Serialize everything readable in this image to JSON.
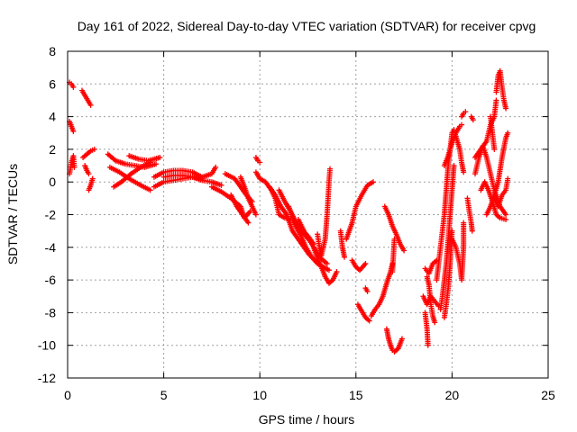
{
  "chart_data": {
    "type": "scatter",
    "title": "Day 161 of 2022, Sidereal Day-to-day VTEC variation (SDTVAR) for receiver cpvg",
    "xlabel": "GPS time / hours",
    "ylabel": "SDTVAR / TECUs",
    "xlim": [
      0,
      25
    ],
    "ylim": [
      -12,
      8
    ],
    "xticks": [
      "0",
      "5",
      "10",
      "15",
      "20",
      "25"
    ],
    "yticks": [
      "8",
      "6",
      "4",
      "2",
      "0",
      "-2",
      "-4",
      "-6",
      "-8",
      "-10",
      "-12"
    ],
    "grid": true,
    "marker": "+",
    "color": "#ff0000",
    "segments": [
      [
        [
          0.1,
          6.1
        ],
        [
          0.2,
          6.0
        ],
        [
          0.3,
          5.8
        ]
      ],
      [
        [
          0.1,
          3.7
        ],
        [
          0.2,
          3.4
        ],
        [
          0.3,
          3.1
        ]
      ],
      [
        [
          0.1,
          0.5
        ],
        [
          0.2,
          1.2
        ],
        [
          0.3,
          1.6
        ],
        [
          0.35,
          0.9
        ]
      ],
      [
        [
          0.75,
          5.6
        ],
        [
          0.9,
          5.3
        ],
        [
          1.05,
          5.0
        ],
        [
          1.2,
          4.7
        ]
      ],
      [
        [
          0.8,
          1.5
        ],
        [
          1.0,
          1.7
        ],
        [
          1.2,
          1.9
        ],
        [
          1.4,
          2.0
        ]
      ],
      [
        [
          0.9,
          1.0
        ],
        [
          1.0,
          0.7
        ],
        [
          1.1,
          0.5
        ]
      ],
      [
        [
          1.1,
          -0.5
        ],
        [
          1.2,
          -0.2
        ],
        [
          1.3,
          0.2
        ]
      ],
      [
        [
          2.1,
          1.7
        ],
        [
          2.5,
          1.3
        ],
        [
          3.0,
          1.1
        ],
        [
          3.5,
          1.0
        ],
        [
          4.0,
          0.9
        ],
        [
          4.6,
          1.1
        ]
      ],
      [
        [
          2.2,
          0.9
        ],
        [
          2.7,
          0.6
        ],
        [
          3.2,
          0.2
        ],
        [
          3.8,
          -0.2
        ],
        [
          4.3,
          -0.5
        ]
      ],
      [
        [
          2.4,
          -0.3
        ],
        [
          2.8,
          0.0
        ],
        [
          3.3,
          0.5
        ],
        [
          3.8,
          0.9
        ],
        [
          4.3,
          1.2
        ]
      ],
      [
        [
          3.2,
          1.6
        ],
        [
          3.7,
          1.4
        ],
        [
          4.2,
          1.3
        ],
        [
          4.8,
          1.5
        ]
      ],
      [
        [
          4.5,
          0.3
        ],
        [
          5.0,
          0.6
        ],
        [
          5.5,
          0.7
        ],
        [
          6.0,
          0.7
        ],
        [
          6.5,
          0.6
        ],
        [
          7.0,
          0.3
        ],
        [
          7.5,
          0.5
        ],
        [
          7.7,
          0.9
        ]
      ],
      [
        [
          4.5,
          -0.3
        ],
        [
          5.0,
          0.0
        ],
        [
          5.5,
          0.1
        ],
        [
          6.0,
          0.2
        ],
        [
          6.5,
          0.3
        ],
        [
          7.0,
          0.1
        ],
        [
          7.5,
          0.0
        ],
        [
          8.0,
          -0.2
        ]
      ],
      [
        [
          5.0,
          0.3
        ],
        [
          5.5,
          0.4
        ],
        [
          6.0,
          0.4
        ],
        [
          6.5,
          0.3
        ],
        [
          7.0,
          0.2
        ]
      ],
      [
        [
          7.5,
          -0.3
        ],
        [
          8.0,
          -0.6
        ],
        [
          8.5,
          -1.0
        ],
        [
          9.0,
          -1.5
        ],
        [
          9.2,
          -2.2
        ],
        [
          9.5,
          -1.8
        ]
      ],
      [
        [
          8.2,
          0.5
        ],
        [
          8.7,
          0.2
        ],
        [
          9.0,
          -0.3
        ],
        [
          9.3,
          -0.8
        ],
        [
          9.6,
          -1.2
        ]
      ],
      [
        [
          8.5,
          -0.8
        ],
        [
          8.8,
          -1.5
        ],
        [
          9.1,
          -2.0
        ],
        [
          9.4,
          -2.5
        ]
      ],
      [
        [
          9.0,
          0.3
        ],
        [
          9.2,
          -0.3
        ],
        [
          9.4,
          -1.0
        ],
        [
          9.6,
          -1.5
        ],
        [
          9.8,
          -2.0
        ]
      ],
      [
        [
          9.8,
          1.5
        ],
        [
          9.9,
          1.3
        ],
        [
          10.0,
          1.2
        ]
      ],
      [
        [
          9.8,
          0.6
        ],
        [
          10.0,
          0.2
        ],
        [
          10.3,
          0.0
        ],
        [
          10.6,
          -0.5
        ],
        [
          10.8,
          -1.0
        ],
        [
          11.0,
          -2.0
        ],
        [
          11.3,
          -2.2
        ],
        [
          11.7,
          -2.3
        ],
        [
          12.0,
          -3.0
        ],
        [
          12.3,
          -3.2
        ],
        [
          12.6,
          -3.6
        ]
      ],
      [
        [
          10.5,
          -0.3
        ],
        [
          10.8,
          -0.8
        ],
        [
          11.1,
          -1.5
        ],
        [
          11.4,
          -2.0
        ],
        [
          11.7,
          -3.0
        ],
        [
          12.0,
          -3.5
        ],
        [
          12.3,
          -4.0
        ],
        [
          12.6,
          -4.5
        ]
      ],
      [
        [
          11.0,
          -0.5
        ],
        [
          11.3,
          -1.2
        ],
        [
          11.6,
          -1.8
        ],
        [
          11.9,
          -2.5
        ],
        [
          12.2,
          -3.0
        ],
        [
          12.5,
          -3.3
        ],
        [
          12.8,
          -3.8
        ]
      ],
      [
        [
          11.5,
          -1.5
        ],
        [
          11.8,
          -2.4
        ],
        [
          12.1,
          -3.2
        ],
        [
          12.4,
          -4.0
        ],
        [
          12.7,
          -4.6
        ],
        [
          13.0,
          -5.0
        ],
        [
          13.3,
          -5.2
        ],
        [
          13.6,
          -5.4
        ]
      ],
      [
        [
          12.0,
          -2.3
        ],
        [
          12.3,
          -3.0
        ],
        [
          12.6,
          -3.6
        ],
        [
          12.9,
          -4.2
        ],
        [
          13.2,
          -4.7
        ],
        [
          13.5,
          -5.0
        ]
      ],
      [
        [
          12.8,
          -4.0
        ],
        [
          13.0,
          -4.7
        ],
        [
          13.2,
          -5.2
        ],
        [
          13.4,
          -5.8
        ],
        [
          13.6,
          -6.2
        ],
        [
          13.8,
          -6.0
        ],
        [
          14.0,
          -5.5
        ]
      ],
      [
        [
          13.0,
          -3.2
        ],
        [
          13.1,
          -4.0
        ],
        [
          13.2,
          -4.5
        ]
      ],
      [
        [
          13.2,
          -4.5
        ],
        [
          13.4,
          -3.5
        ],
        [
          13.5,
          -2.0
        ],
        [
          13.6,
          0.0
        ],
        [
          13.65,
          0.8
        ]
      ],
      [
        [
          14.2,
          -3.0
        ],
        [
          14.3,
          -4.0
        ],
        [
          14.4,
          -4.6
        ]
      ],
      [
        [
          14.5,
          -3.5
        ],
        [
          14.8,
          -2.5
        ],
        [
          15.0,
          -1.5
        ],
        [
          15.3,
          -0.8
        ],
        [
          15.6,
          -0.2
        ],
        [
          15.9,
          0.0
        ]
      ],
      [
        [
          14.8,
          -4.8
        ],
        [
          15.0,
          -5.2
        ],
        [
          15.2,
          -5.4
        ],
        [
          15.5,
          -5.0
        ]
      ],
      [
        [
          15.1,
          -7.5
        ],
        [
          15.3,
          -7.9
        ],
        [
          15.5,
          -8.3
        ],
        [
          15.7,
          -8.5
        ]
      ],
      [
        [
          15.5,
          -6.5
        ],
        [
          15.6,
          -6.7
        ]
      ],
      [
        [
          15.8,
          -8.2
        ],
        [
          16.0,
          -7.8
        ],
        [
          16.2,
          -7.5
        ],
        [
          16.4,
          -7.0
        ],
        [
          16.6,
          -6.2
        ],
        [
          16.8,
          -5.5
        ],
        [
          16.9,
          -5.0
        ]
      ],
      [
        [
          16.5,
          -1.5
        ],
        [
          16.7,
          -2.0
        ],
        [
          16.9,
          -2.7
        ],
        [
          17.1,
          -3.2
        ],
        [
          17.3,
          -3.8
        ],
        [
          17.5,
          -4.2
        ]
      ],
      [
        [
          16.6,
          -9.0
        ],
        [
          16.7,
          -9.6
        ],
        [
          16.8,
          -10.0
        ],
        [
          16.9,
          -10.3
        ],
        [
          17.0,
          -10.4
        ],
        [
          17.2,
          -10.2
        ],
        [
          17.4,
          -9.6
        ]
      ],
      [
        [
          16.9,
          -5.5
        ],
        [
          16.95,
          -4.5
        ],
        [
          17.0,
          -3.5
        ]
      ],
      [
        [
          18.6,
          -5.3
        ],
        [
          18.8,
          -5.6
        ],
        [
          19.0,
          -5.0
        ],
        [
          19.2,
          -4.8
        ]
      ],
      [
        [
          18.5,
          -7.0
        ],
        [
          18.7,
          -7.5
        ],
        [
          18.9,
          -7.0
        ],
        [
          19.1,
          -7.3
        ],
        [
          19.3,
          -7.6
        ]
      ],
      [
        [
          18.6,
          -8.0
        ],
        [
          18.7,
          -9.0
        ],
        [
          18.75,
          -10.0
        ]
      ],
      [
        [
          18.7,
          -5.8
        ],
        [
          18.8,
          -6.3
        ],
        [
          18.9,
          -7.5
        ],
        [
          19.0,
          -8.2
        ],
        [
          19.1,
          -8.6
        ]
      ],
      [
        [
          19.2,
          -6.0
        ],
        [
          19.3,
          -5.0
        ],
        [
          19.4,
          -4.0
        ],
        [
          19.5,
          -3.0
        ],
        [
          19.6,
          -2.0
        ],
        [
          19.7,
          -0.5
        ],
        [
          19.8,
          1.0
        ],
        [
          19.9,
          2.0
        ],
        [
          20.0,
          3.0
        ],
        [
          20.1,
          3.2
        ]
      ],
      [
        [
          19.4,
          -7.8
        ],
        [
          19.5,
          -7.0
        ],
        [
          19.6,
          -6.0
        ],
        [
          19.7,
          -5.0
        ],
        [
          19.8,
          -3.5
        ],
        [
          19.9,
          -2.0
        ],
        [
          20.0,
          -0.5
        ],
        [
          20.1,
          1.0
        ]
      ],
      [
        [
          19.6,
          -8.3
        ],
        [
          19.7,
          -7.5
        ],
        [
          19.8,
          -6.5
        ],
        [
          19.9,
          -5.0
        ],
        [
          20.0,
          -3.0
        ]
      ],
      [
        [
          19.6,
          1.0
        ],
        [
          19.8,
          1.6
        ],
        [
          20.0,
          2.4
        ],
        [
          20.2,
          3.0
        ],
        [
          20.4,
          3.4
        ],
        [
          20.5,
          3.5
        ]
      ],
      [
        [
          20.2,
          2.8
        ],
        [
          20.4,
          2.0
        ],
        [
          20.5,
          1.2
        ],
        [
          20.6,
          0.6
        ]
      ],
      [
        [
          20.0,
          -3.5
        ],
        [
          20.2,
          -4.0
        ],
        [
          20.4,
          -5.0
        ],
        [
          20.5,
          -6.0
        ],
        [
          20.6,
          -4.0
        ],
        [
          20.6,
          -2.5
        ]
      ],
      [
        [
          20.5,
          4.0
        ],
        [
          20.6,
          4.2
        ],
        [
          20.7,
          4.3
        ]
      ],
      [
        [
          20.8,
          -1.0
        ],
        [
          20.9,
          -1.8
        ],
        [
          21.0,
          -2.5
        ],
        [
          21.05,
          -3.0
        ]
      ],
      [
        [
          21.2,
          1.5
        ],
        [
          21.5,
          2.0
        ],
        [
          21.8,
          2.5
        ],
        [
          22.0,
          3.5
        ],
        [
          22.2,
          4.0
        ],
        [
          22.3,
          5.0
        ]
      ],
      [
        [
          21.2,
          0.5
        ],
        [
          21.4,
          1.5
        ],
        [
          21.6,
          2.2
        ],
        [
          21.8,
          1.5
        ],
        [
          22.0,
          0.5
        ],
        [
          22.2,
          -0.5
        ],
        [
          22.5,
          -1.5
        ],
        [
          22.8,
          -2.0
        ]
      ],
      [
        [
          21.5,
          -0.5
        ],
        [
          21.7,
          0.0
        ],
        [
          21.9,
          -0.5
        ],
        [
          22.1,
          -1.2
        ],
        [
          22.3,
          -2.0
        ],
        [
          22.5,
          -2.2
        ],
        [
          22.8,
          -2.3
        ]
      ],
      [
        [
          21.8,
          -2.0
        ],
        [
          22.0,
          -1.5
        ],
        [
          22.2,
          -0.8
        ],
        [
          22.4,
          0.0
        ],
        [
          22.6,
          1.5
        ],
        [
          22.8,
          2.7
        ],
        [
          22.9,
          3.0
        ]
      ],
      [
        [
          22.0,
          4.0
        ],
        [
          22.1,
          3.0
        ],
        [
          22.2,
          2.0
        ]
      ],
      [
        [
          22.3,
          5.5
        ],
        [
          22.4,
          6.5
        ],
        [
          22.5,
          6.8
        ],
        [
          22.6,
          5.8
        ],
        [
          22.7,
          5.0
        ],
        [
          22.8,
          4.5
        ]
      ],
      [
        [
          22.2,
          -1.0
        ],
        [
          22.4,
          -1.5
        ],
        [
          22.6,
          -0.8
        ],
        [
          22.8,
          -0.5
        ],
        [
          22.9,
          0.2
        ]
      ],
      [
        [
          21.0,
          4.0
        ],
        [
          21.1,
          3.8
        ]
      ]
    ]
  }
}
